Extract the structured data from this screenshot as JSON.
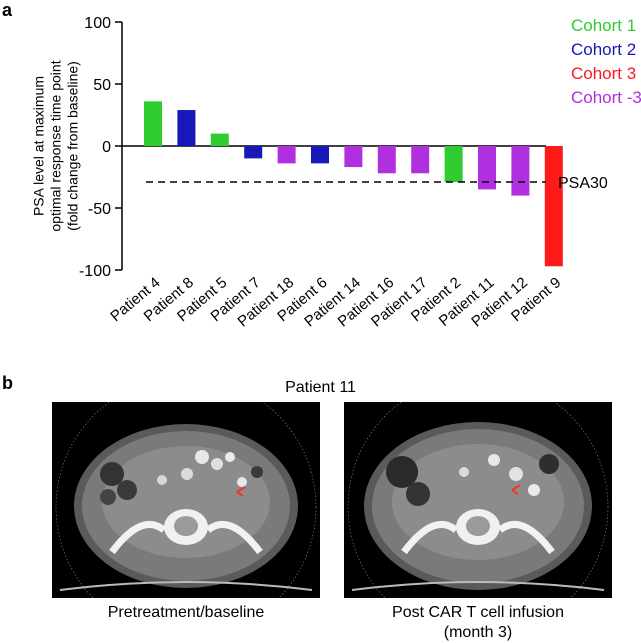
{
  "panels": {
    "a": "a",
    "b": "b"
  },
  "chart_data": {
    "type": "bar",
    "categories": [
      "Patient 4",
      "Patient 8",
      "Patient 5",
      "Patient 7",
      "Patient 18",
      "Patient 6",
      "Patient 14",
      "Patient 16",
      "Patient 17",
      "Patient 2",
      "Patient 11",
      "Patient 12",
      "Patient 9"
    ],
    "values": [
      36,
      29,
      10,
      -10,
      -14,
      -14,
      -17,
      -22,
      -22,
      -29,
      -35,
      -40,
      -97
    ],
    "bar_colors": [
      "#2ecc2e",
      "#1818b8",
      "#2ecc2e",
      "#1818b8",
      "#b030e0",
      "#1818b8",
      "#b030e0",
      "#b030e0",
      "#b030e0",
      "#2ecc2e",
      "#b030e0",
      "#b030e0",
      "#ff1a1a"
    ],
    "ylabel": [
      "PSA level at maximum",
      "optimal response time point",
      "(fold change from baseline)"
    ],
    "xlabel": "",
    "ylim": [
      -100,
      100
    ],
    "yticks": [
      100,
      50,
      0,
      -50,
      -100
    ],
    "reference_line": {
      "value": -29,
      "label": "PSA30",
      "style": "dashed"
    },
    "legend": {
      "placement": "top-right",
      "entries": [
        {
          "label": "Cohort  1",
          "color": "#2ecc2e"
        },
        {
          "label": "Cohort  2",
          "color": "#1818b8"
        },
        {
          "label": "Cohort  3",
          "color": "#ff1a1a"
        },
        {
          "label": "Cohort -3",
          "color": "#b030e0"
        }
      ]
    },
    "grid": false
  },
  "panel_b": {
    "title": "Patient 11",
    "left_caption": "Pretreatment/baseline",
    "right_caption_line1": "Post CAR T cell infusion",
    "right_caption_line2": "(month 3)"
  }
}
